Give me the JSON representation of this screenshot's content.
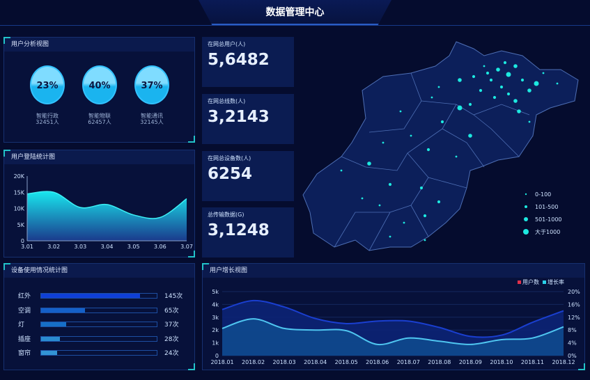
{
  "header": {
    "title": "数据管理中心"
  },
  "user_analysis": {
    "title": "用户分析视图",
    "items": [
      {
        "pct": "23%",
        "name": "智能行政",
        "count": "32451人"
      },
      {
        "pct": "40%",
        "name": "智能物联",
        "count": "62457人"
      },
      {
        "pct": "37%",
        "name": "智能通讯",
        "count": "32145人"
      }
    ]
  },
  "stats": [
    {
      "label": "在网总用户(人)",
      "value": "5,6482"
    },
    {
      "label": "在网总线数(人)",
      "value": "3,2143"
    },
    {
      "label": "在网总设备数(人)",
      "value": "6254"
    },
    {
      "label": "总传输数据(G)",
      "value": "3,1248"
    }
  ],
  "map": {
    "legend": [
      "0-100",
      "101-500",
      "501-1000",
      "大于1000"
    ],
    "dot_color": "#1de9e0"
  },
  "device_usage": {
    "title": "设备使用情况统计图",
    "items": [
      {
        "name": "红外",
        "value": 145,
        "label": "145次",
        "color": "#0f3fd6"
      },
      {
        "name": "空调",
        "value": 65,
        "label": "65次",
        "color": "#1460c9"
      },
      {
        "name": "灯",
        "value": 37,
        "label": "37次",
        "color": "#166fc8"
      },
      {
        "name": "插座",
        "value": 28,
        "label": "28次",
        "color": "#2a8bd0"
      },
      {
        "name": "窗帘",
        "value": 24,
        "label": "24次",
        "color": "#3394d4"
      }
    ],
    "max": 170
  },
  "chart_data": [
    {
      "type": "area",
      "title": "用户登陆统计图",
      "x": [
        "3.01",
        "3.02",
        "3.03",
        "3.04",
        "3.05",
        "3.06",
        "3.07"
      ],
      "values": [
        14500,
        15000,
        10300,
        11200,
        8000,
        7200,
        13000
      ],
      "yticks": [
        "0",
        "5K",
        "10K",
        "15K",
        "20K"
      ],
      "ylim": [
        0,
        20000
      ],
      "grid": false
    },
    {
      "type": "area",
      "title": "用户增长视图",
      "categories": [
        "2018.01",
        "2018.02",
        "2018.03",
        "2018.04",
        "2018.05",
        "2018.06",
        "2018.07",
        "2018.08",
        "2018.09",
        "2018.10",
        "2018.11",
        "2018.12"
      ],
      "series": [
        {
          "name": "用户数",
          "axis": "left",
          "values": [
            3600,
            4300,
            3800,
            2900,
            2500,
            2700,
            2700,
            2200,
            1500,
            1600,
            2600,
            3500
          ],
          "color": "#1a3fd0"
        },
        {
          "name": "增长率",
          "axis": "right",
          "values": [
            8.5,
            11.5,
            8.5,
            8,
            7.8,
            3.5,
            5.5,
            4.5,
            3.5,
            5,
            5.5,
            9
          ],
          "color": "#4fc6f0"
        }
      ],
      "yticks_left": [
        "0",
        "1k",
        "2k",
        "3k",
        "4k",
        "5k"
      ],
      "ylim_left": [
        0,
        5000
      ],
      "yticks_right": [
        "0%",
        "4%",
        "8%",
        "12%",
        "16%",
        "20%"
      ],
      "ylim_right": [
        0,
        20
      ],
      "legend_colors": [
        "#e0304a",
        "#2ad0e8"
      ],
      "legend_placement": "top-right",
      "grid": true
    }
  ]
}
